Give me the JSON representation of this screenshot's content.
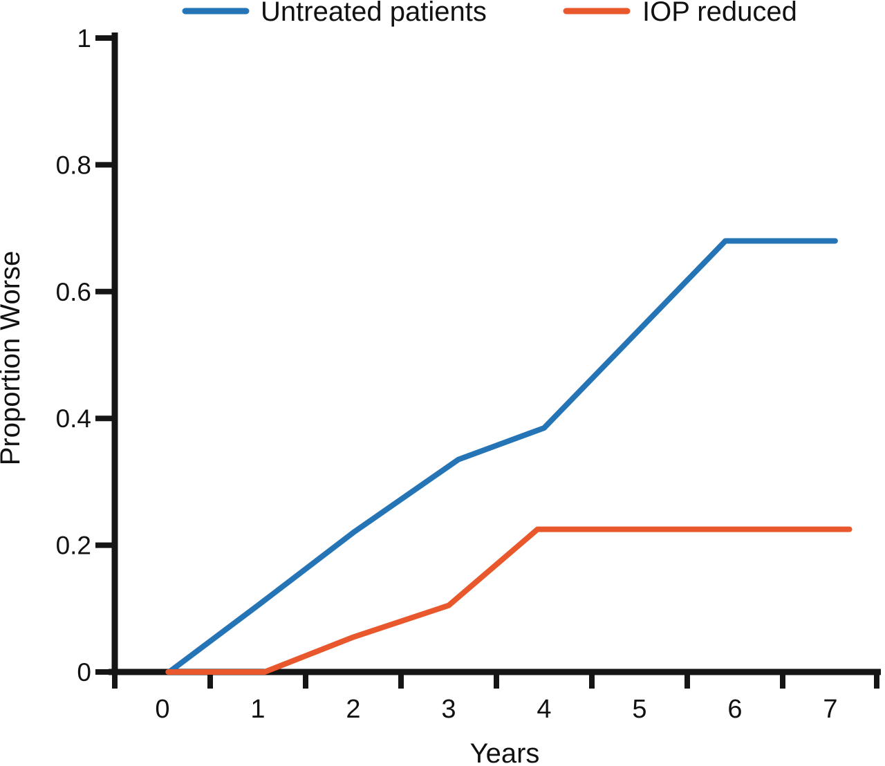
{
  "figure": {
    "background": "#ffffff",
    "axis_color": "#151515",
    "text_color": "#111111"
  },
  "legend": [
    {
      "label": "Untreated patients",
      "color": "#2474b6"
    },
    {
      "label": "IOP reduced",
      "color": "#e8582c"
    }
  ],
  "chart_data": {
    "type": "line",
    "title": "",
    "xlabel": "Years",
    "ylabel": "Proportion Worse",
    "xlim": [
      -0.5,
      7.5
    ],
    "ylim": [
      0,
      1
    ],
    "grid": false,
    "legend_position": "top",
    "x_ticks": [
      0,
      1,
      2,
      3,
      4,
      5,
      6,
      7
    ],
    "x_tick_labels": [
      "0",
      "1",
      "2",
      "3",
      "4",
      "5",
      "6",
      "7"
    ],
    "x_tick_style": "boundary-ticks-between-labels",
    "y_ticks": [
      0,
      0.2,
      0.4,
      0.6,
      0.8,
      1
    ],
    "y_tick_labels": [
      "0",
      "0.2",
      "0.4",
      "0.6",
      "0.8",
      "1"
    ],
    "series": [
      {
        "name": "Untreated patients",
        "color": "#2474b6",
        "points": [
          [
            0.07,
            0
          ],
          [
            1,
            0.105
          ],
          [
            2,
            0.22
          ],
          [
            3.1,
            0.335
          ],
          [
            4,
            0.385
          ],
          [
            5.9,
            0.68
          ],
          [
            7.05,
            0.68
          ]
        ]
      },
      {
        "name": "IOP reduced",
        "color": "#e8582c",
        "points": [
          [
            0.06,
            0
          ],
          [
            1.07,
            0
          ],
          [
            2,
            0.055
          ],
          [
            3,
            0.105
          ],
          [
            3.93,
            0.225
          ],
          [
            7.2,
            0.225
          ]
        ]
      }
    ]
  }
}
